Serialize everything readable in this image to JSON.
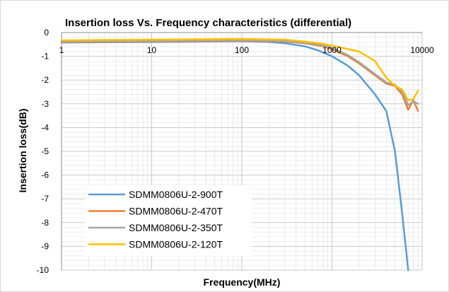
{
  "chart_data": {
    "type": "line",
    "title": "Insertion loss Vs. Frequency characteristics (differential)",
    "xlabel": "Frequency(MHz)",
    "ylabel": "Insertion loss(dB)",
    "x_scale": "log",
    "xlim": [
      1,
      10000
    ],
    "ylim": [
      -10,
      0
    ],
    "x_ticks": [
      "1",
      "10",
      "100",
      "1000",
      "10000"
    ],
    "y_ticks": [
      "0",
      "-1",
      "-2",
      "-3",
      "-4",
      "-5",
      "-6",
      "-7",
      "-8",
      "-9",
      "-10"
    ],
    "grid": true,
    "legend_position": "bottom-left",
    "series": [
      {
        "name": "SDMM0806U-2-900T",
        "color": "#5b9bd5",
        "points": [
          [
            1,
            -0.42
          ],
          [
            10,
            -0.4
          ],
          [
            100,
            -0.37
          ],
          [
            200,
            -0.4
          ],
          [
            300,
            -0.45
          ],
          [
            500,
            -0.58
          ],
          [
            700,
            -0.75
          ],
          [
            1000,
            -1.0
          ],
          [
            1500,
            -1.4
          ],
          [
            2000,
            -1.8
          ],
          [
            3000,
            -2.6
          ],
          [
            4000,
            -3.3
          ],
          [
            5000,
            -5.0
          ],
          [
            6000,
            -7.6
          ],
          [
            7000,
            -10.0
          ]
        ]
      },
      {
        "name": "SDMM0806U-2-470T",
        "color": "#ed7d31",
        "points": [
          [
            1,
            -0.4
          ],
          [
            10,
            -0.38
          ],
          [
            100,
            -0.35
          ],
          [
            300,
            -0.38
          ],
          [
            500,
            -0.45
          ],
          [
            800,
            -0.58
          ],
          [
            1000,
            -0.7
          ],
          [
            1500,
            -1.0
          ],
          [
            2000,
            -1.3
          ],
          [
            3000,
            -1.8
          ],
          [
            4000,
            -2.15
          ],
          [
            5000,
            -2.25
          ],
          [
            6000,
            -2.6
          ],
          [
            7000,
            -3.25
          ],
          [
            8000,
            -2.85
          ],
          [
            9000,
            -3.3
          ]
        ]
      },
      {
        "name": "SDMM0806U-2-350T",
        "color": "#a5a5a5",
        "points": [
          [
            1,
            -0.38
          ],
          [
            10,
            -0.36
          ],
          [
            100,
            -0.33
          ],
          [
            300,
            -0.36
          ],
          [
            500,
            -0.42
          ],
          [
            800,
            -0.55
          ],
          [
            1000,
            -0.65
          ],
          [
            1500,
            -0.95
          ],
          [
            2000,
            -1.25
          ],
          [
            3000,
            -1.75
          ],
          [
            4000,
            -2.1
          ],
          [
            5000,
            -2.2
          ],
          [
            6000,
            -2.5
          ],
          [
            7000,
            -3.05
          ],
          [
            8000,
            -2.9
          ],
          [
            9000,
            -3.0
          ]
        ]
      },
      {
        "name": "SDMM0806U-2-120T",
        "color": "#ffc000",
        "points": [
          [
            1,
            -0.33
          ],
          [
            10,
            -0.3
          ],
          [
            100,
            -0.27
          ],
          [
            300,
            -0.3
          ],
          [
            500,
            -0.38
          ],
          [
            800,
            -0.48
          ],
          [
            1000,
            -0.55
          ],
          [
            1500,
            -0.7
          ],
          [
            2000,
            -0.8
          ],
          [
            3000,
            -1.2
          ],
          [
            4000,
            -1.9
          ],
          [
            5000,
            -2.25
          ],
          [
            6000,
            -2.4
          ],
          [
            7000,
            -2.85
          ],
          [
            8000,
            -2.8
          ],
          [
            9000,
            -2.45
          ]
        ]
      }
    ]
  }
}
